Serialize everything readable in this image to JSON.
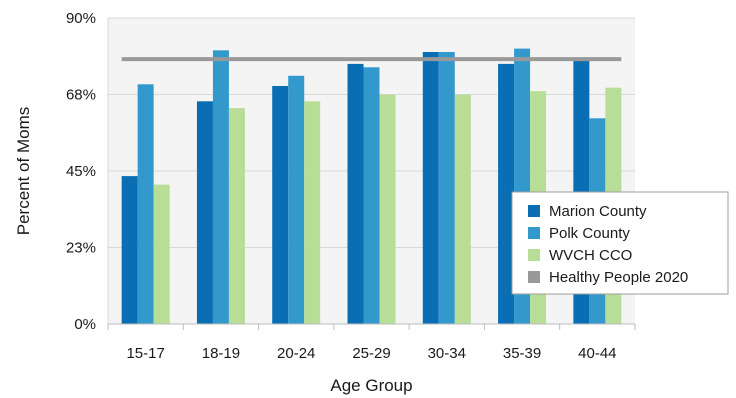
{
  "chart_data": {
    "type": "bar",
    "xlabel": "Age Group",
    "ylabel": "Percent of Moms",
    "categories": [
      "15-17",
      "18-19",
      "20-24",
      "25-29",
      "30-34",
      "35-39",
      "40-44"
    ],
    "y_ticks": [
      "0%",
      "23%",
      "45%",
      "68%",
      "90%"
    ],
    "ylim": [
      0,
      90
    ],
    "grid": true,
    "legend_position": "right",
    "series": [
      {
        "name": "Marion County",
        "color": "#0a6eb5",
        "values": [
          43.5,
          65.5,
          70,
          76.5,
          80,
          76.5,
          77.5
        ]
      },
      {
        "name": "Polk County",
        "color": "#3399cc",
        "values": [
          70.5,
          80.5,
          73,
          75.5,
          80,
          81,
          60.5
        ]
      },
      {
        "name": "WVCH CCO",
        "color": "#b7dd97",
        "values": [
          41,
          63.5,
          65.5,
          67.5,
          67.5,
          68.5,
          69.5
        ]
      }
    ],
    "reference_line": {
      "name": "Healthy People 2020",
      "color": "#999999",
      "value": 77.9
    }
  }
}
